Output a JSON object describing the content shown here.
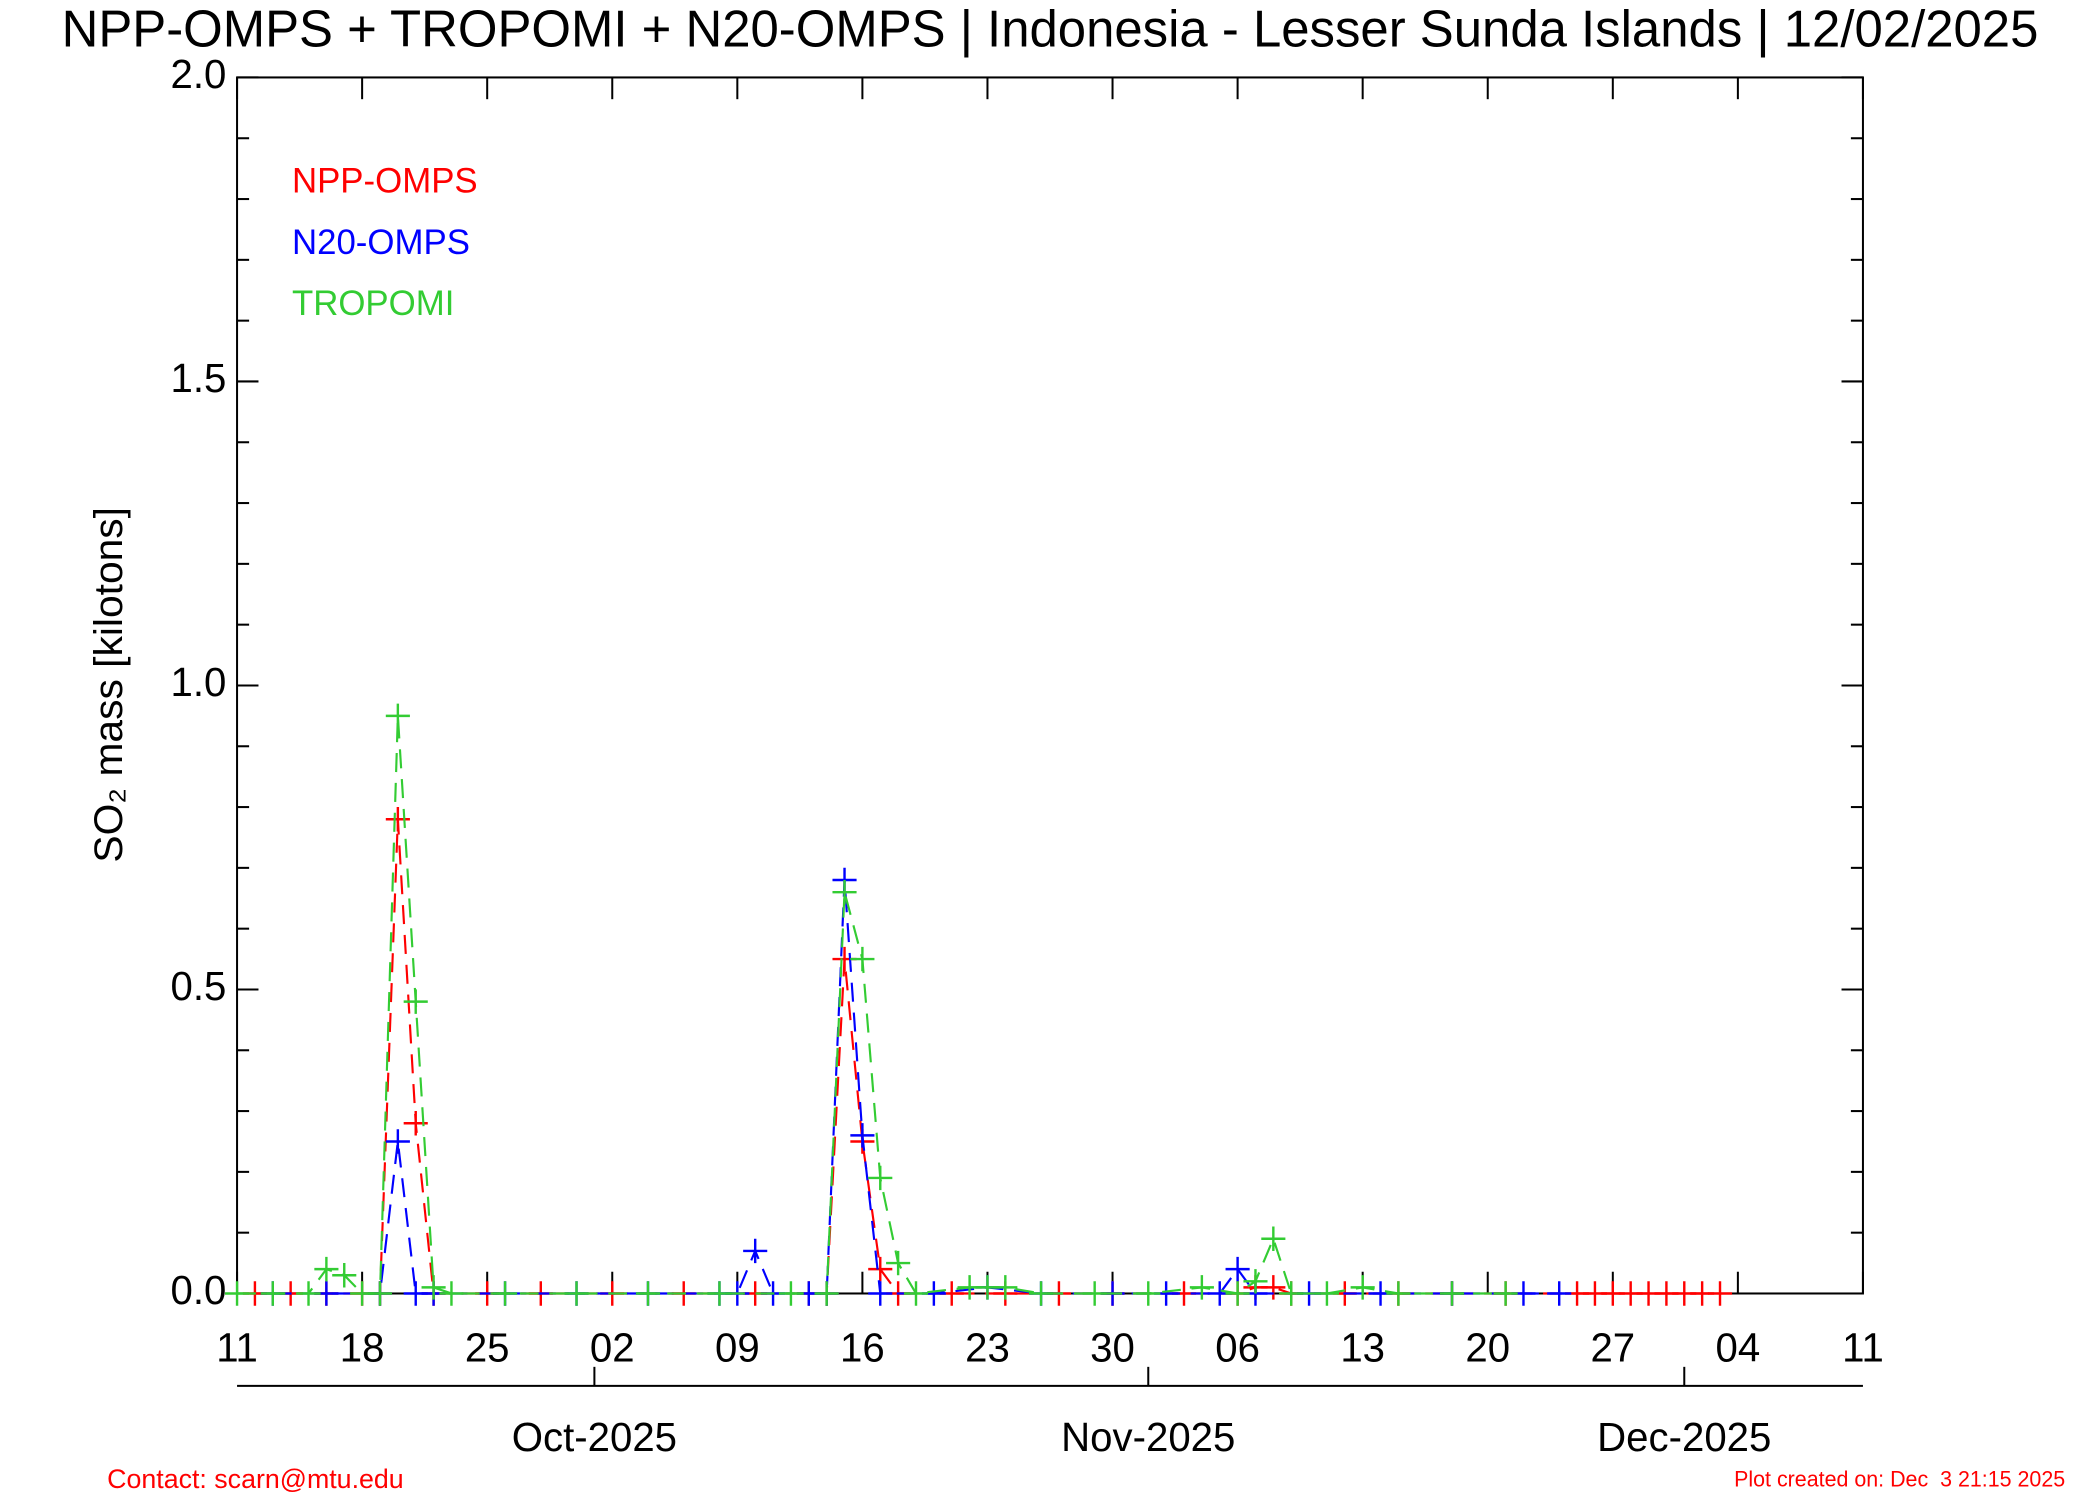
{
  "chart_data": {
    "type": "line",
    "title": "NPP-OMPS + TROPOMI + N20-OMPS | Indonesia - Lesser Sunda Islands | 12/02/2025",
    "y_label": "SO₂ mass [kilotons]",
    "xlim": [
      "2025-09-11",
      "2025-12-11"
    ],
    "xticks": [
      {
        "value": "2025-09-11",
        "label": "11"
      },
      {
        "value": "2025-09-18",
        "label": "18"
      },
      {
        "value": "2025-09-25",
        "label": "25"
      },
      {
        "value": "2025-10-02",
        "label": "02"
      },
      {
        "value": "2025-10-09",
        "label": "09"
      },
      {
        "value": "2025-10-16",
        "label": "16"
      },
      {
        "value": "2025-10-23",
        "label": "23"
      },
      {
        "value": "2025-10-30",
        "label": "30"
      },
      {
        "value": "2025-11-06",
        "label": "06"
      },
      {
        "value": "2025-11-13",
        "label": "13"
      },
      {
        "value": "2025-11-20",
        "label": "20"
      },
      {
        "value": "2025-11-27",
        "label": "27"
      },
      {
        "value": "2025-12-04",
        "label": "04"
      },
      {
        "value": "2025-12-11",
        "label": "11"
      }
    ],
    "month_ticks": [
      {
        "value": "2025-10-01",
        "label": "Oct-2025"
      },
      {
        "value": "2025-11-01",
        "label": "Nov-2025"
      },
      {
        "value": "2025-12-01",
        "label": "Dec-2025"
      }
    ],
    "ylim": [
      0,
      2
    ],
    "yticks": [
      {
        "value": 0,
        "label": "0.0"
      },
      {
        "value": 0.5,
        "label": "0.5"
      },
      {
        "value": 1,
        "label": "1.0"
      },
      {
        "value": 1.5,
        "label": "1.5"
      },
      {
        "value": 2,
        "label": "2.0"
      }
    ],
    "yminorticks": [
      0.1,
      0.2,
      0.3,
      0.4,
      0.6,
      0.7,
      0.8,
      0.9,
      1.1,
      1.2,
      1.3,
      1.4,
      1.6,
      1.7,
      1.8,
      1.9
    ],
    "series": [
      {
        "name": "NPP-OMPS",
        "color": "#ff0000",
        "x": [
          "2025-09-12",
          "2025-09-14",
          "2025-09-16",
          "2025-09-18",
          "2025-09-19",
          "2025-09-20",
          "2025-09-21",
          "2025-09-22",
          "2025-09-25",
          "2025-09-28",
          "2025-10-02",
          "2025-10-06",
          "2025-10-10",
          "2025-10-13",
          "2025-10-14",
          "2025-10-15",
          "2025-10-16",
          "2025-10-17",
          "2025-10-18",
          "2025-10-21",
          "2025-10-24",
          "2025-10-27",
          "2025-10-30",
          "2025-11-03",
          "2025-11-06",
          "2025-11-07",
          "2025-11-08",
          "2025-11-09",
          "2025-11-12",
          "2025-11-15",
          "2025-11-18",
          "2025-11-21",
          "2025-11-25",
          "2025-11-26",
          "2025-11-27",
          "2025-11-28",
          "2025-11-29",
          "2025-11-30",
          "2025-12-01",
          "2025-12-02",
          "2025-12-03"
        ],
        "values": [
          0,
          0,
          0,
          0,
          0,
          0.78,
          0.28,
          0,
          0,
          0,
          0,
          0,
          0,
          0,
          0,
          0.55,
          0.25,
          0.04,
          0,
          0,
          0,
          0,
          0,
          0,
          0,
          0.01,
          0.01,
          0,
          0,
          0,
          0,
          0,
          0,
          0,
          0,
          0,
          0,
          0,
          0,
          0,
          0
        ]
      },
      {
        "name": "N20-OMPS",
        "color": "#0000ff",
        "x": [
          "2025-09-13",
          "2025-09-16",
          "2025-09-19",
          "2025-09-20",
          "2025-09-21",
          "2025-09-22",
          "2025-09-26",
          "2025-09-30",
          "2025-10-04",
          "2025-10-08",
          "2025-10-09",
          "2025-10-10",
          "2025-10-11",
          "2025-10-13",
          "2025-10-14",
          "2025-10-15",
          "2025-10-16",
          "2025-10-17",
          "2025-10-20",
          "2025-10-23",
          "2025-10-26",
          "2025-10-30",
          "2025-11-02",
          "2025-11-05",
          "2025-11-06",
          "2025-11-07",
          "2025-11-10",
          "2025-11-14",
          "2025-11-18",
          "2025-11-22",
          "2025-11-24"
        ],
        "values": [
          0,
          0,
          0,
          0.25,
          0,
          0,
          0,
          0,
          0,
          0,
          0,
          0.07,
          0,
          0,
          0,
          0.68,
          0.26,
          0,
          0,
          0.01,
          0,
          0,
          0,
          0,
          0.04,
          0,
          0,
          0,
          0,
          0,
          0
        ]
      },
      {
        "name": "TROPOMI",
        "color": "#33cc33",
        "x": [
          "2025-09-11",
          "2025-09-13",
          "2025-09-15",
          "2025-09-16",
          "2025-09-17",
          "2025-09-18",
          "2025-09-19",
          "2025-09-20",
          "2025-09-21",
          "2025-09-22",
          "2025-09-23",
          "2025-09-26",
          "2025-09-30",
          "2025-10-04",
          "2025-10-08",
          "2025-10-12",
          "2025-10-14",
          "2025-10-15",
          "2025-10-16",
          "2025-10-17",
          "2025-10-18",
          "2025-10-19",
          "2025-10-22",
          "2025-10-23",
          "2025-10-24",
          "2025-10-26",
          "2025-10-29",
          "2025-11-01",
          "2025-11-04",
          "2025-11-06",
          "2025-11-07",
          "2025-11-08",
          "2025-11-09",
          "2025-11-11",
          "2025-11-13",
          "2025-11-15",
          "2025-11-18",
          "2025-11-21"
        ],
        "values": [
          0,
          0,
          0,
          0.04,
          0.03,
          0,
          0,
          0.95,
          0.48,
          0.01,
          0,
          0,
          0,
          0,
          0,
          0,
          0,
          0.66,
          0.55,
          0.19,
          0.05,
          0,
          0.01,
          0.01,
          0.01,
          0,
          0,
          0,
          0.01,
          0,
          0.02,
          0.09,
          0,
          0,
          0.01,
          0,
          0,
          0
        ]
      }
    ],
    "contact": "Contact: scarn@mtu.edu",
    "created": "Plot created on: Dec  3 21:15 2025"
  }
}
